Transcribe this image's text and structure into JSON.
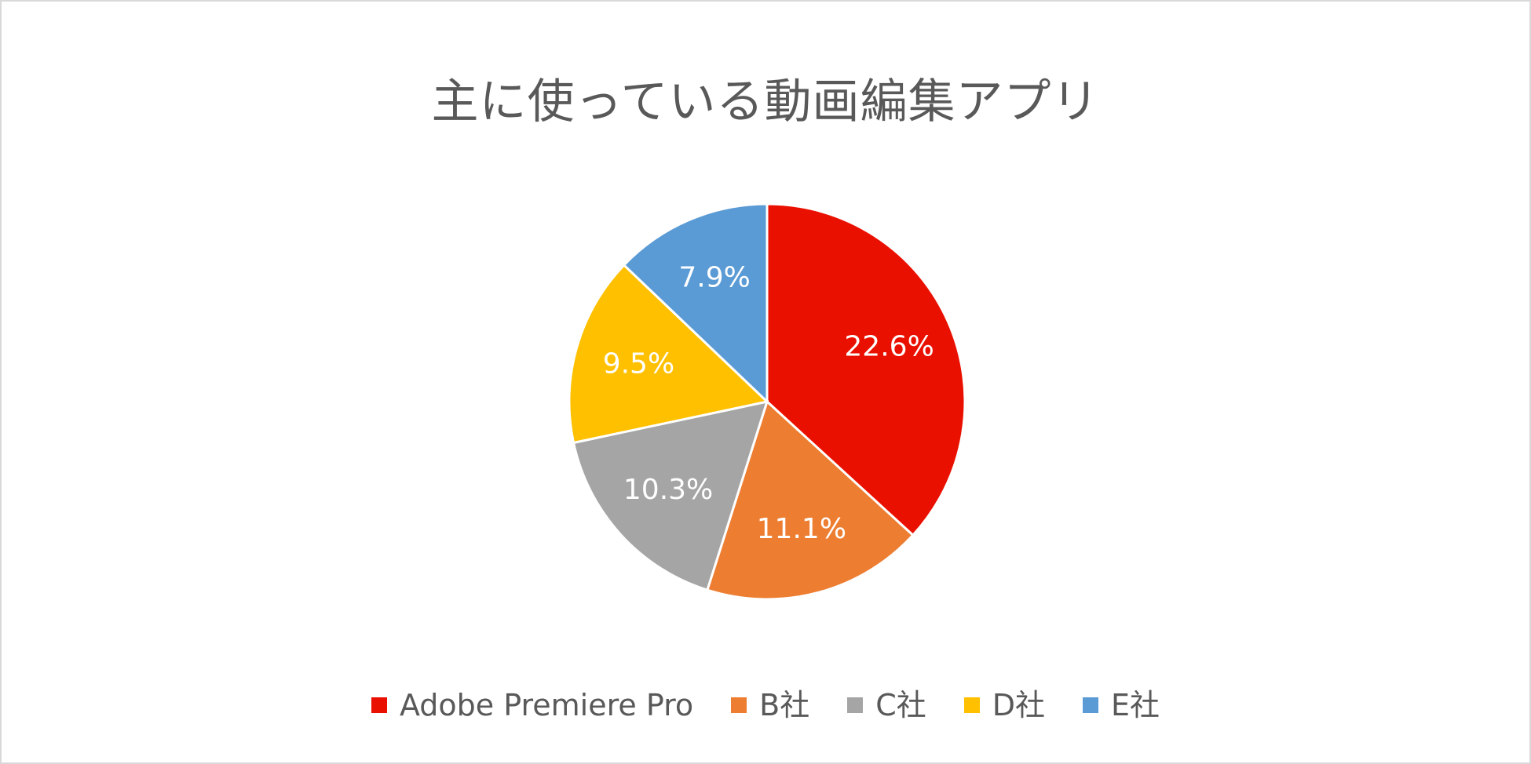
{
  "chart_data": {
    "type": "pie",
    "title": "主に使っている動画編集アプリ",
    "legend_position": "bottom",
    "slices": [
      {
        "name": "Adobe Premiere Pro",
        "value": 22.6,
        "label": "22.6%",
        "color": "#ea1000"
      },
      {
        "name": "B社",
        "value": 11.1,
        "label": "11.1%",
        "color": "#ed7d31"
      },
      {
        "name": "C社",
        "value": 10.3,
        "label": "10.3%",
        "color": "#a5a5a5"
      },
      {
        "name": "D社",
        "value": 9.5,
        "label": "9.5%",
        "color": "#ffc000"
      },
      {
        "name": "E社",
        "value": 7.9,
        "label": "7.9%",
        "color": "#5b9bd5"
      }
    ]
  }
}
